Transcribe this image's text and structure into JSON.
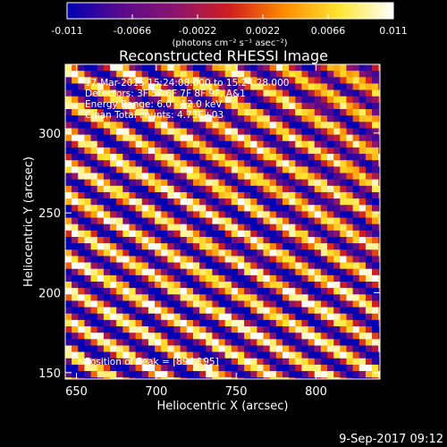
{
  "chart_data": {
    "type": "heatmap",
    "title": "Reconstructed RHESSI Image",
    "xlabel": "Heliocentric X (arcsec)",
    "ylabel": "Heliocentric Y (arcsec)",
    "xlim": [
      643,
      840
    ],
    "ylim": [
      146,
      343
    ],
    "xticks": [
      650,
      700,
      750,
      800
    ],
    "yticks": [
      150,
      200,
      250,
      300
    ],
    "grid": false,
    "colormap": [
      "#0000b4",
      "#5a0a8c",
      "#8c146e",
      "#d21e1e",
      "#ff8c00",
      "#ffe632",
      "#ffffff"
    ],
    "colorbar": {
      "range": [
        -0.011,
        0.011
      ],
      "tick_labels": [
        "-0.011",
        "-0.0066",
        "-0.0022",
        "0.0022",
        "0.0066",
        "0.011"
      ],
      "tick_values": [
        -0.011,
        -0.0066,
        -0.0022,
        0.0022,
        0.0066,
        0.011
      ],
      "unit_label": "(photons cm⁻² s⁻¹ asec⁻²)"
    },
    "pattern": {
      "description_units": "diagonal stripes of counts rising toward lower-left, pixel size 4 arcsec",
      "pixel_arcsec": 4,
      "stripe_period_arcsec": 17,
      "stripe_direction_deg": -30
    },
    "annotations": {
      "time_range": "17-Mar-2015 15:24:08.000 to 15:24:28.000",
      "detectors": "Detectors: 3F 5F 6F 7F 8F 9F, A&1",
      "energy_range": "Energy Range: 6.0 - 12.0 keV",
      "clean": "Clean    Total counts: 4.73E+03",
      "peak": "Position of Peak = [894,195]"
    },
    "peak_position": [
      894,
      195
    ]
  },
  "footer": {
    "timestamp": "9-Sep-2017 09:12"
  }
}
